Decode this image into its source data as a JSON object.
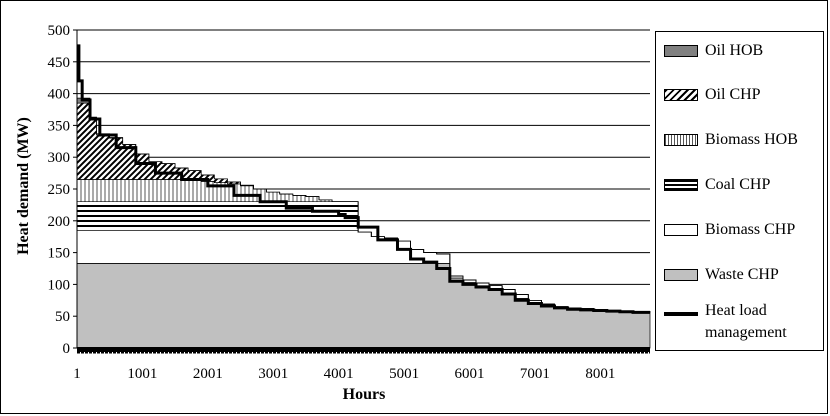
{
  "chart_data": {
    "type": "area",
    "xlabel": "Hours",
    "ylabel": "Heat demand (MW)",
    "xlim": [
      1,
      8760
    ],
    "ylim": [
      0,
      500
    ],
    "x_ticks": [
      "1",
      "1001",
      "2001",
      "3001",
      "4001",
      "5001",
      "6001",
      "7001",
      "8001"
    ],
    "y_ticks": [
      "0",
      "50",
      "100",
      "150",
      "200",
      "250",
      "300",
      "350",
      "400",
      "450",
      "500"
    ],
    "grid": "horizontal",
    "legend_position": "right",
    "stack_x": [
      1,
      200,
      300,
      500,
      700,
      900,
      1100,
      1300,
      1500,
      1700,
      1900,
      2100,
      2300,
      2500,
      2700,
      2900,
      3100,
      3300,
      3500,
      3700,
      3900,
      4100,
      4300,
      4500,
      4700,
      4900,
      5100,
      5300,
      5500,
      5700,
      5900,
      6100,
      6300,
      6500,
      6700,
      6900,
      7100,
      7300,
      7500,
      7700,
      7900,
      8100,
      8300,
      8500,
      8760
    ],
    "series": [
      {
        "name": "Waste CHP",
        "color": "#c0c0c0",
        "pattern": "solid",
        "values": [
          133,
          133,
          133,
          133,
          133,
          133,
          133,
          133,
          133,
          133,
          133,
          133,
          133,
          133,
          133,
          133,
          133,
          133,
          133,
          133,
          133,
          133,
          133,
          133,
          133,
          133,
          133,
          133,
          133,
          110,
          103,
          98,
          93,
          86,
          78,
          71,
          67,
          64,
          62,
          61,
          60,
          59,
          58,
          57,
          56
        ]
      },
      {
        "name": "Biomass CHP",
        "color": "#ffffff",
        "pattern": "solid",
        "values": [
          52,
          52,
          52,
          52,
          52,
          52,
          52,
          52,
          52,
          52,
          52,
          52,
          52,
          52,
          52,
          52,
          52,
          52,
          52,
          52,
          52,
          52,
          49,
          42,
          40,
          35,
          22,
          17,
          15,
          3,
          4,
          4,
          5,
          6,
          6,
          4,
          2,
          1,
          1,
          1,
          0,
          0,
          0,
          0,
          0
        ]
      },
      {
        "name": "Coal CHP",
        "color": "#ffffff",
        "pattern": "horizontal",
        "values": [
          45,
          45,
          45,
          45,
          45,
          45,
          45,
          45,
          45,
          45,
          45,
          45,
          45,
          45,
          45,
          45,
          45,
          45,
          45,
          45,
          45,
          45,
          0,
          0,
          0,
          0,
          0,
          0,
          0,
          0,
          0,
          0,
          0,
          0,
          0,
          0,
          0,
          0,
          0,
          0,
          0,
          0,
          0,
          0,
          0
        ]
      },
      {
        "name": "Biomass HOB",
        "color": "#ffffff",
        "pattern": "vertical",
        "values": [
          35,
          35,
          35,
          35,
          35,
          35,
          35,
          35,
          35,
          35,
          32,
          30,
          28,
          25,
          20,
          15,
          12,
          10,
          8,
          3,
          0,
          0,
          0,
          0,
          0,
          0,
          0,
          0,
          0,
          0,
          0,
          0,
          0,
          0,
          0,
          0,
          0,
          0,
          0,
          0,
          0,
          0,
          0,
          0,
          0
        ]
      },
      {
        "name": "Oil CHP",
        "color": "#ffffff",
        "pattern": "diagonal",
        "values": [
          120,
          95,
          70,
          65,
          55,
          40,
          28,
          25,
          18,
          14,
          10,
          6,
          3,
          1,
          0,
          0,
          0,
          0,
          0,
          0,
          0,
          0,
          0,
          0,
          0,
          0,
          0,
          0,
          0,
          0,
          0,
          0,
          0,
          0,
          0,
          0,
          0,
          0,
          0,
          0,
          0,
          0,
          0,
          0,
          0
        ]
      },
      {
        "name": "Oil HOB",
        "color": "#808080",
        "pattern": "solid",
        "values": [
          8,
          3,
          2,
          1,
          0,
          0,
          0,
          0,
          0,
          0,
          0,
          0,
          0,
          0,
          0,
          0,
          0,
          0,
          0,
          0,
          0,
          0,
          0,
          0,
          0,
          0,
          0,
          0,
          0,
          0,
          0,
          0,
          0,
          0,
          0,
          0,
          0,
          0,
          0,
          0,
          0,
          0,
          0,
          0,
          0
        ]
      }
    ],
    "heat_load_management": {
      "name": "Heat load management",
      "color": "#000000",
      "x": [
        1,
        30,
        80,
        200,
        350,
        600,
        900,
        1200,
        1600,
        2000,
        2400,
        2800,
        3200,
        3600,
        4000,
        4100,
        4300,
        4600,
        4900,
        5100,
        5300,
        5500,
        5700,
        5900,
        6100,
        6300,
        6500,
        6700,
        6900,
        7100,
        7300,
        7500,
        7700,
        7900,
        8100,
        8300,
        8500,
        8760
      ],
      "values": [
        475,
        420,
        390,
        360,
        335,
        315,
        290,
        275,
        265,
        255,
        240,
        230,
        220,
        215,
        210,
        205,
        190,
        170,
        155,
        140,
        135,
        125,
        105,
        100,
        96,
        92,
        85,
        75,
        70,
        66,
        63,
        61,
        60,
        59,
        58,
        57,
        56,
        56
      ]
    }
  },
  "legend": {
    "items": [
      {
        "label": "Oil HOB",
        "kind": "swatch",
        "series": 5
      },
      {
        "label": "Oil CHP",
        "kind": "swatch",
        "series": 4
      },
      {
        "label": "Biomass HOB",
        "kind": "swatch",
        "series": 3
      },
      {
        "label": "Coal CHP",
        "kind": "swatch",
        "series": 2
      },
      {
        "label": "Biomass CHP",
        "kind": "swatch",
        "series": 1
      },
      {
        "label": "Waste CHP",
        "kind": "swatch",
        "series": 0
      },
      {
        "label": "Heat load management",
        "kind": "line"
      }
    ]
  }
}
